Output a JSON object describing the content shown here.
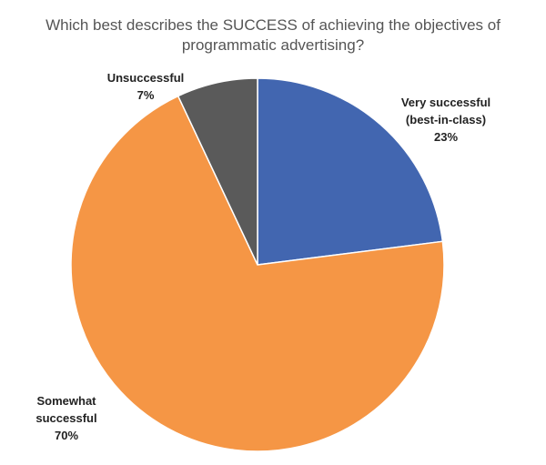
{
  "chart_data": {
    "type": "pie",
    "title_lines": [
      "Which best describes the SUCCESS of achieving the objectives of",
      "programmatic advertising?"
    ],
    "slices": [
      {
        "name": "very-successful",
        "label_lines": [
          "Very successful",
          "(best-in-class)"
        ],
        "pct_label": "23%",
        "value": 23,
        "color": "#4266B0"
      },
      {
        "name": "somewhat-successful",
        "label_lines": [
          "Somewhat",
          "successful"
        ],
        "pct_label": "70%",
        "value": 70,
        "color": "#F59645"
      },
      {
        "name": "unsuccessful",
        "label_lines": [
          "Unsuccessful"
        ],
        "pct_label": "7%",
        "value": 7,
        "color": "#5A5A5A"
      }
    ],
    "start_angle_deg": 0,
    "direction": "clockwise"
  }
}
